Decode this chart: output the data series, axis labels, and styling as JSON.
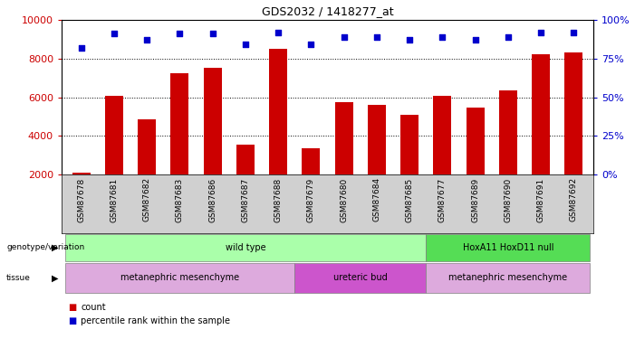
{
  "title": "GDS2032 / 1418277_at",
  "samples": [
    "GSM87678",
    "GSM87681",
    "GSM87682",
    "GSM87683",
    "GSM87686",
    "GSM87687",
    "GSM87688",
    "GSM87679",
    "GSM87680",
    "GSM87684",
    "GSM87685",
    "GSM87677",
    "GSM87689",
    "GSM87690",
    "GSM87691",
    "GSM87692"
  ],
  "counts": [
    2100,
    6050,
    4850,
    7250,
    7500,
    3550,
    8500,
    3350,
    5750,
    5600,
    5100,
    6050,
    5450,
    6350,
    8200,
    8300
  ],
  "percentile": [
    82,
    91,
    87,
    91,
    91,
    84,
    92,
    84,
    89,
    89,
    87,
    89,
    87,
    89,
    92,
    92
  ],
  "ylim_left": [
    2000,
    10000
  ],
  "ylim_right": [
    0,
    100
  ],
  "yticks_left": [
    2000,
    4000,
    6000,
    8000,
    10000
  ],
  "yticks_right": [
    0,
    25,
    50,
    75,
    100
  ],
  "bar_color": "#cc0000",
  "dot_color": "#0000cc",
  "plot_bg_color": "#ffffff",
  "ticklabel_bg_color": "#d0d0d0",
  "genotype_groups": [
    {
      "label": "wild type",
      "start": 0,
      "end": 11,
      "color": "#aaffaa"
    },
    {
      "label": "HoxA11 HoxD11 null",
      "start": 11,
      "end": 16,
      "color": "#55dd55"
    }
  ],
  "tissue_groups": [
    {
      "label": "metanephric mesenchyme",
      "start": 0,
      "end": 7,
      "color": "#ddaadd"
    },
    {
      "label": "ureteric bud",
      "start": 7,
      "end": 11,
      "color": "#cc55cc"
    },
    {
      "label": "metanephric mesenchyme",
      "start": 11,
      "end": 16,
      "color": "#ddaadd"
    }
  ],
  "legend_count_color": "#cc0000",
  "legend_pct_color": "#0000cc",
  "ylabel_left_color": "#cc0000",
  "ylabel_right_color": "#0000cc",
  "n_samples": 16,
  "xlim": [
    -0.6,
    15.6
  ]
}
